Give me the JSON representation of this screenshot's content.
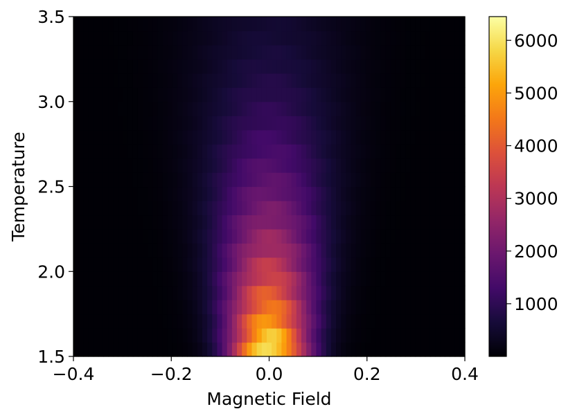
{
  "chart_data": {
    "type": "heatmap",
    "title": "",
    "xlabel": "Magnetic Field",
    "ylabel": "Temperature",
    "xlim": [
      -0.4,
      0.4
    ],
    "ylim": [
      1.5,
      3.5
    ],
    "xticks": [
      -0.4,
      -0.2,
      0.0,
      0.2,
      0.4
    ],
    "xtick_labels": [
      "−0.4",
      "−0.2",
      "0.0",
      "0.2",
      "0.4"
    ],
    "yticks": [
      1.5,
      2.0,
      2.5,
      3.0,
      3.5
    ],
    "ytick_labels": [
      "1.5",
      "2.0",
      "2.5",
      "3.0",
      "3.5"
    ],
    "grid": false,
    "colormap": "inferno",
    "colorbar": {
      "range": [
        0,
        6450
      ],
      "ticks": [
        1000,
        2000,
        3000,
        4000,
        5000,
        6000
      ],
      "tick_labels": [
        "1000",
        "2000",
        "3000",
        "4000",
        "5000",
        "6000"
      ]
    },
    "grid_x_bins": 79,
    "grid_y_bins": 24,
    "model": {
      "peak_value": 6450,
      "center_field": 0.0,
      "width_base": 0.055,
      "width_slope": 0.03,
      "temp_decay": 0.78,
      "floor": 20
    }
  }
}
